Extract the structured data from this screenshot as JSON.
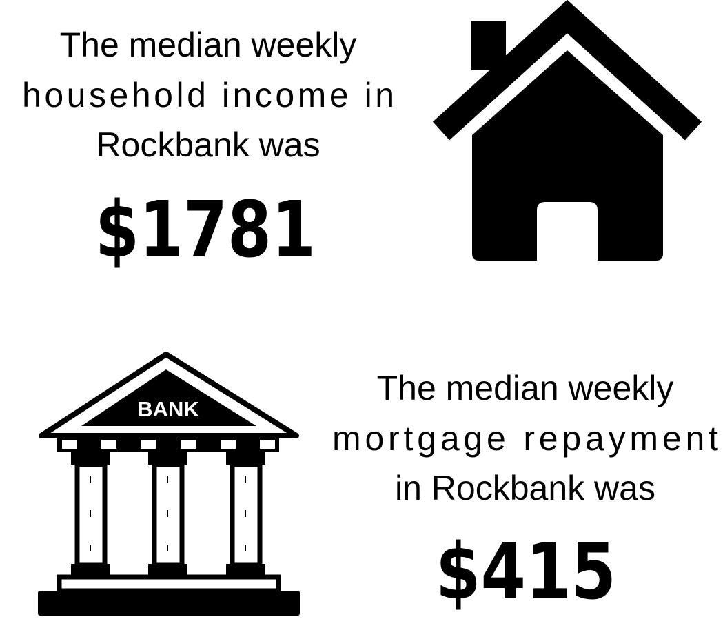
{
  "income": {
    "lines": [
      "The median weekly",
      "household income in",
      "Rockbank was"
    ],
    "value": "$1781"
  },
  "mortgage": {
    "lines": [
      "The median weekly",
      "mortgage repayment",
      "in Rockbank was"
    ],
    "value": "$415"
  },
  "bank_icon": {
    "label": "BANK"
  }
}
